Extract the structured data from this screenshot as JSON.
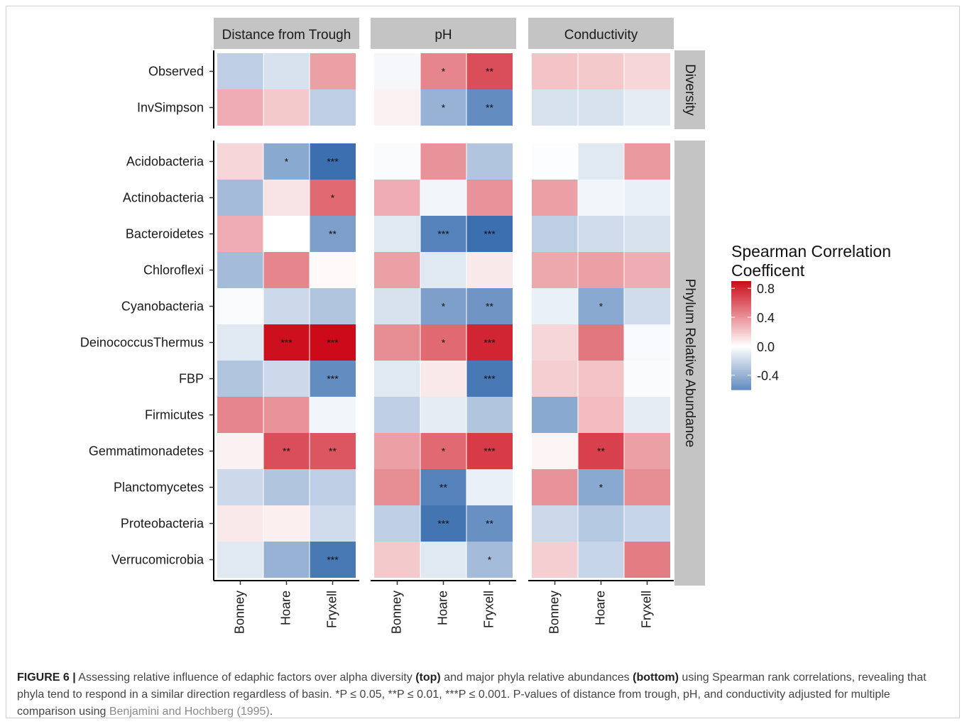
{
  "chart_data": {
    "type": "heatmap",
    "facet_columns": [
      "Distance from Trough",
      "pH",
      "Conductivity"
    ],
    "facet_rows": [
      "Diversity",
      "Phylum Relative Abundance"
    ],
    "x_categories": [
      "Bonney",
      "Hoare",
      "Fryxell"
    ],
    "row_groups": [
      {
        "name": "Diversity",
        "rows": [
          "Observed",
          "InvSimpson"
        ]
      },
      {
        "name": "Phylum Relative Abundance",
        "rows": [
          "Acidobacteria",
          "Actinobacteria",
          "Bacteroidetes",
          "Chloroflexi",
          "Cyanobacteria",
          "DeinococcusThermus",
          "FBP",
          "Firmicutes",
          "Gemmatimonadetes",
          "Planctomycetes",
          "Proteobacteria",
          "Verrucomicrobia"
        ]
      }
    ],
    "values": {
      "Distance from Trough": {
        "Observed": [
          -0.25,
          -0.15,
          0.35
        ],
        "InvSimpson": [
          0.3,
          0.2,
          -0.25
        ],
        "Acidobacteria": [
          0.15,
          -0.45,
          -0.75
        ],
        "Actinobacteria": [
          -0.35,
          0.1,
          0.55
        ],
        "Bacteroidetes": [
          0.3,
          0.0,
          -0.5
        ],
        "Chloroflexi": [
          -0.35,
          0.45,
          0.02
        ],
        "Cyanobacteria": [
          -0.02,
          -0.2,
          -0.3
        ],
        "DeinococcusThermus": [
          -0.12,
          0.88,
          0.9
        ],
        "FBP": [
          -0.3,
          -0.2,
          -0.6
        ],
        "Firmicutes": [
          0.45,
          0.4,
          -0.05
        ],
        "Gemmatimonadetes": [
          0.05,
          0.65,
          0.62
        ],
        "Planctomycetes": [
          -0.2,
          -0.3,
          -0.25
        ],
        "Proteobacteria": [
          0.08,
          0.06,
          -0.18
        ],
        "Verrucomicrobia": [
          -0.12,
          -0.4,
          -0.7
        ]
      },
      "pH": {
        "Observed": [
          -0.04,
          0.45,
          0.65
        ],
        "InvSimpson": [
          0.05,
          -0.4,
          -0.6
        ],
        "Acidobacteria": [
          -0.02,
          0.4,
          -0.3
        ],
        "Actinobacteria": [
          0.3,
          -0.05,
          0.4
        ],
        "Bacteroidetes": [
          -0.12,
          -0.65,
          -0.78
        ],
        "Chloroflexi": [
          0.35,
          -0.12,
          0.08
        ],
        "Cyanobacteria": [
          -0.15,
          -0.5,
          -0.55
        ],
        "DeinococcusThermus": [
          0.42,
          0.55,
          0.8
        ],
        "FBP": [
          -0.12,
          0.08,
          -0.7
        ],
        "Firmicutes": [
          -0.25,
          -0.1,
          -0.3
        ],
        "Gemmatimonadetes": [
          0.35,
          0.55,
          0.72
        ],
        "Planctomycetes": [
          0.42,
          -0.65,
          -0.08
        ],
        "Proteobacteria": [
          -0.25,
          -0.72,
          -0.58
        ],
        "Verrucomicrobia": [
          0.2,
          -0.12,
          -0.35
        ]
      },
      "Conductivity": {
        "Observed": [
          0.22,
          0.2,
          0.15
        ],
        "InvSimpson": [
          -0.15,
          -0.15,
          -0.1
        ],
        "Acidobacteria": [
          -0.01,
          -0.12,
          0.38
        ],
        "Actinobacteria": [
          0.35,
          -0.05,
          -0.08
        ],
        "Bacteroidetes": [
          -0.25,
          -0.18,
          -0.15
        ],
        "Chloroflexi": [
          0.32,
          0.35,
          0.3
        ],
        "Cyanobacteria": [
          -0.08,
          -0.45,
          -0.18
        ],
        "DeinococcusThermus": [
          0.15,
          0.5,
          -0.03
        ],
        "FBP": [
          0.18,
          0.22,
          -0.02
        ],
        "Firmicutes": [
          -0.45,
          0.25,
          -0.1
        ],
        "Gemmatimonadetes": [
          0.04,
          0.7,
          0.35
        ],
        "Planctomycetes": [
          0.4,
          -0.45,
          0.42
        ],
        "Proteobacteria": [
          -0.2,
          -0.28,
          -0.22
        ],
        "Verrucomicrobia": [
          0.18,
          -0.22,
          0.48
        ]
      }
    },
    "significance": {
      "Distance from Trough": {
        "Acidobacteria": [
          "",
          "*",
          "***"
        ],
        "Actinobacteria": [
          "",
          "",
          "*"
        ],
        "Bacteroidetes": [
          "",
          "",
          "**"
        ],
        "DeinococcusThermus": [
          "",
          "***",
          "***"
        ],
        "FBP": [
          "",
          "",
          "***"
        ],
        "Gemmatimonadetes": [
          "",
          "**",
          "**"
        ],
        "Verrucomicrobia": [
          "",
          "",
          "***"
        ]
      },
      "pH": {
        "Observed": [
          "",
          "*",
          "**"
        ],
        "InvSimpson": [
          "",
          "*",
          "**"
        ],
        "Bacteroidetes": [
          "",
          "***",
          "***"
        ],
        "Cyanobacteria": [
          "",
          "*",
          "**"
        ],
        "DeinococcusThermus": [
          "",
          "*",
          "***"
        ],
        "FBP": [
          "",
          "",
          "***"
        ],
        "Gemmatimonadetes": [
          "",
          "*",
          "***"
        ],
        "Planctomycetes": [
          "",
          "**",
          ""
        ],
        "Proteobacteria": [
          "",
          "***",
          "**"
        ],
        "Verrucomicrobia": [
          "",
          "",
          "*"
        ]
      },
      "Conductivity": {
        "Cyanobacteria": [
          "",
          "*",
          ""
        ],
        "Gemmatimonadetes": [
          "",
          "**",
          ""
        ],
        "Planctomycetes": [
          "",
          "*",
          ""
        ]
      }
    },
    "legend": {
      "title_lines": [
        "Spearman Correlation",
        "Coefficent"
      ],
      "ticks": [
        "0.8",
        "0.4",
        "0.0",
        "-0.4"
      ],
      "tick_values": [
        0.8,
        0.4,
        0.0,
        -0.4
      ],
      "range": [
        -0.6,
        0.9
      ],
      "position": "right"
    },
    "colors": {
      "high": "#cc0a19",
      "mid": "#ffffff",
      "low": "#3c6fb0",
      "strip_bg": "#c4c4c4"
    }
  },
  "caption": {
    "label": "FIGURE 6 |",
    "part1": " Assessing relative influence of edaphic factors over alpha diversity ",
    "top": "(top)",
    "part2": " and major phyla relative abundances ",
    "bottom": "(bottom)",
    "part3": " using Spearman rank correlations, revealing that phyla tend to respond in a similar direction regardless of basin. *P ≤ 0.05, **P ≤ 0.01, ***P ≤ 0.001. P-values of distance from trough, pH, and conductivity adjusted for multiple comparison using ",
    "citation": "Benjamini and Hochberg (1995)",
    "part4": "."
  }
}
